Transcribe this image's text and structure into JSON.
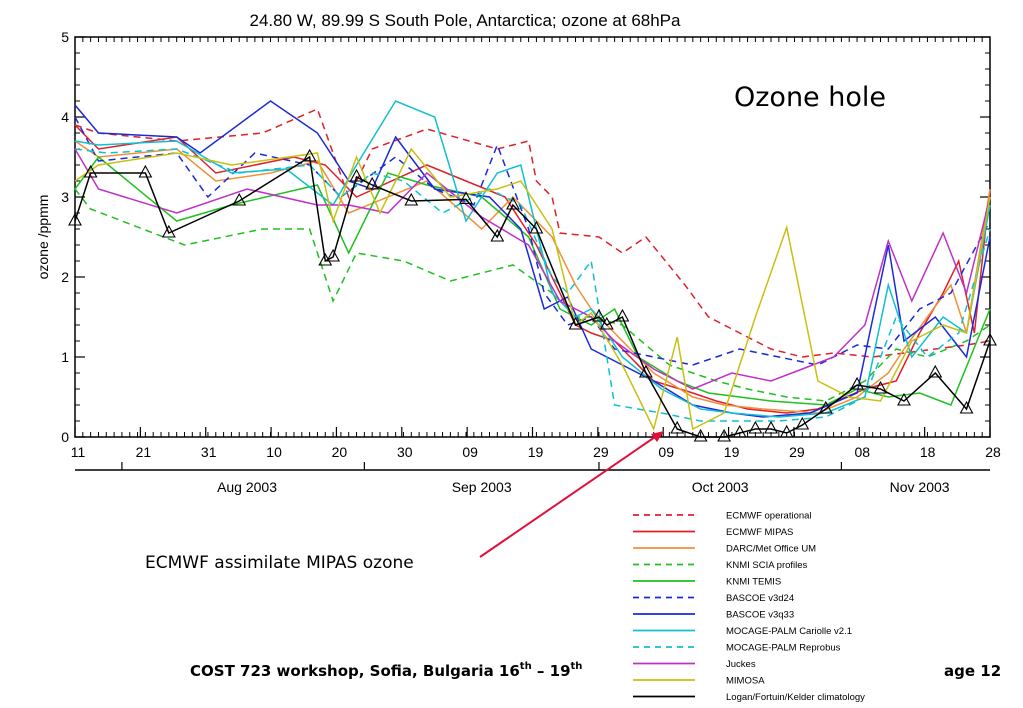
{
  "chart_data": {
    "type": "line",
    "title": "24.80 W, 89.99 S South Pole, Antarctica; ozone at 68hPa",
    "ylabel": "ozone /ppmm",
    "xlabel": "",
    "ylim": [
      0,
      5
    ],
    "xlim": [
      0,
      117
    ],
    "y_ticks": [
      "0",
      "1",
      "2",
      "3",
      "4",
      "5"
    ],
    "x_tick_labels": [
      "11",
      "21",
      "31",
      "10",
      "20",
      "30",
      "09",
      "19",
      "29",
      "09",
      "19",
      "29",
      "08",
      "18",
      "28"
    ],
    "x_months": [
      "Aug 2003",
      "Sep 2003",
      "Oct 2003",
      "Nov 2003"
    ],
    "grid": false,
    "legend_position": "bottom-right below plot",
    "series": [
      {
        "name": "ECMWF operational",
        "color": "#e0202a",
        "dash": true,
        "markers": false,
        "x": [
          0,
          3,
          13,
          24,
          31,
          35,
          38,
          45,
          54,
          58,
          59,
          61,
          62,
          67,
          70,
          73,
          78,
          81,
          85,
          89,
          93,
          97,
          102,
          106,
          110,
          114,
          117
        ],
        "y": [
          3.9,
          3.8,
          3.7,
          3.8,
          4.1,
          3.0,
          3.6,
          3.85,
          3.6,
          3.7,
          3.2,
          3.0,
          2.55,
          2.5,
          2.3,
          2.5,
          1.9,
          1.5,
          1.3,
          1.1,
          1.0,
          1.05,
          1.0,
          1.05,
          1.1,
          1.15,
          1.2
        ]
      },
      {
        "name": "ECMWF MIPAS",
        "color": "#e0202a",
        "dash": false,
        "markers": false,
        "x": [
          0,
          3,
          13,
          18,
          28,
          32,
          36,
          45,
          55,
          59,
          64,
          66,
          69,
          74,
          79,
          82,
          86,
          91,
          95,
          101,
          105,
          108,
          111,
          113,
          115,
          117
        ],
        "y": [
          3.9,
          3.6,
          3.75,
          3.3,
          3.5,
          3.4,
          3.0,
          3.4,
          3.0,
          2.4,
          1.4,
          1.3,
          1.2,
          0.7,
          0.55,
          0.45,
          0.35,
          0.3,
          0.35,
          0.6,
          0.7,
          1.3,
          1.8,
          2.2,
          1.3,
          3.1
        ]
      },
      {
        "name": "DARC/Met Office UM",
        "color": "#f0903a",
        "dash": false,
        "markers": false,
        "x": [
          0,
          3,
          13,
          18,
          25,
          31,
          35,
          45,
          52,
          56,
          61,
          64,
          66,
          69,
          74,
          79,
          83,
          88,
          95,
          100,
          104,
          106,
          109,
          112,
          114,
          117
        ],
        "y": [
          3.7,
          3.5,
          3.6,
          3.2,
          3.3,
          3.45,
          2.8,
          3.2,
          2.6,
          3.0,
          2.5,
          1.9,
          1.6,
          1.3,
          0.8,
          0.5,
          0.4,
          0.35,
          0.3,
          0.5,
          0.8,
          1.1,
          1.5,
          1.9,
          1.3,
          3.1
        ]
      },
      {
        "name": "KNMI SCIA profiles",
        "color": "#20c020",
        "dash": true,
        "markers": false,
        "x": [
          0,
          2,
          14,
          24,
          30,
          33,
          36,
          42,
          48,
          56,
          61,
          64,
          66,
          70,
          76,
          82,
          86,
          91,
          96,
          101,
          105,
          109,
          114,
          117
        ],
        "y": [
          3.1,
          2.85,
          2.4,
          2.6,
          2.6,
          1.7,
          2.3,
          2.2,
          1.95,
          2.15,
          1.8,
          1.5,
          1.5,
          1.4,
          0.9,
          0.7,
          0.6,
          0.5,
          0.45,
          0.7,
          1.1,
          1.0,
          1.2,
          1.4
        ]
      },
      {
        "name": "KNMI TEMIS",
        "color": "#20c020",
        "dash": false,
        "markers": false,
        "x": [
          0,
          3,
          13,
          20,
          31,
          35,
          40,
          45,
          52,
          58,
          62,
          66,
          69,
          72,
          77,
          81,
          85,
          89,
          96,
          100,
          104,
          108,
          112,
          117
        ],
        "y": [
          3.1,
          3.5,
          2.7,
          2.9,
          3.15,
          2.3,
          3.3,
          3.15,
          3.0,
          2.5,
          1.6,
          1.4,
          1.6,
          1.0,
          0.7,
          0.55,
          0.5,
          0.45,
          0.4,
          0.6,
          0.5,
          0.55,
          0.4,
          1.6
        ]
      },
      {
        "name": "BASCOE v3d24",
        "color": "#1a2ad8",
        "dash": true,
        "markers": false,
        "x": [
          0,
          3,
          13,
          17,
          23,
          30,
          34,
          41,
          46,
          51,
          54,
          58,
          60,
          63,
          66,
          69,
          74,
          79,
          85,
          90,
          95,
          100,
          104,
          108,
          112,
          117
        ],
        "y": [
          4.0,
          3.45,
          3.55,
          3.0,
          3.55,
          3.4,
          3.0,
          3.5,
          3.1,
          2.9,
          3.65,
          2.6,
          1.8,
          1.4,
          1.5,
          1.1,
          1.0,
          0.9,
          1.1,
          1.0,
          0.9,
          1.15,
          1.1,
          1.6,
          1.8,
          2.7
        ]
      },
      {
        "name": "BASCOE v3q33",
        "color": "#1a2ad8",
        "dash": false,
        "markers": false,
        "x": [
          0,
          3,
          13,
          16,
          25,
          31,
          35,
          38,
          41,
          46,
          53,
          57,
          60,
          63,
          66,
          69,
          74,
          79,
          84,
          88,
          94,
          100,
          104,
          106,
          110,
          114,
          117
        ],
        "y": [
          4.15,
          3.8,
          3.75,
          3.55,
          4.2,
          3.8,
          3.2,
          3.1,
          3.75,
          3.1,
          3.0,
          2.6,
          1.6,
          1.75,
          1.1,
          0.95,
          0.7,
          0.4,
          0.3,
          0.25,
          0.3,
          0.55,
          2.4,
          1.2,
          1.5,
          1.0,
          2.5
        ]
      },
      {
        "name": "MOCAGE-PALM Cariolle v2.1",
        "color": "#10c0d0",
        "dash": false,
        "markers": false,
        "x": [
          0,
          3,
          13,
          20,
          27,
          33,
          36,
          41,
          46,
          50,
          54,
          57,
          61,
          64,
          66,
          70,
          75,
          80,
          84,
          90,
          96,
          101,
          104,
          107,
          111,
          114,
          117
        ],
        "y": [
          3.7,
          3.65,
          3.7,
          3.3,
          3.35,
          2.9,
          3.4,
          4.2,
          4.0,
          2.7,
          3.3,
          3.4,
          1.8,
          1.5,
          1.6,
          1.0,
          0.6,
          0.35,
          0.3,
          0.25,
          0.3,
          0.5,
          1.9,
          1.0,
          1.5,
          1.3,
          2.9
        ]
      },
      {
        "name": "MOCAGE-PALM Reprobus",
        "color": "#10c0d0",
        "dash": true,
        "markers": false,
        "x": [
          0,
          4,
          13,
          21,
          30,
          34,
          38,
          42,
          47,
          53,
          57,
          61,
          63,
          66,
          69,
          75,
          80,
          84,
          90,
          96,
          101,
          105,
          109,
          113,
          117
        ],
        "y": [
          3.6,
          3.55,
          3.6,
          3.3,
          3.4,
          3.0,
          3.3,
          3.2,
          2.8,
          3.1,
          2.9,
          2.0,
          1.8,
          2.2,
          0.4,
          0.3,
          0.2,
          0.2,
          0.2,
          0.25,
          0.5,
          1.5,
          1.0,
          1.3,
          2.6
        ]
      },
      {
        "name": "Juckes",
        "color": "#c030c8",
        "dash": false,
        "markers": false,
        "x": [
          0,
          3,
          13,
          22,
          31,
          35,
          40,
          45,
          52,
          58,
          62,
          66,
          69,
          74,
          79,
          84,
          89,
          93,
          97,
          101,
          104,
          107,
          111,
          114,
          117
        ],
        "y": [
          3.6,
          3.1,
          2.8,
          3.1,
          2.9,
          2.9,
          2.8,
          3.3,
          2.75,
          2.4,
          1.7,
          1.5,
          1.2,
          0.85,
          0.6,
          0.8,
          0.7,
          0.85,
          1.0,
          1.4,
          2.45,
          1.7,
          2.55,
          1.8,
          3.0
        ]
      },
      {
        "name": "MIMOSA",
        "color": "#c8c010",
        "dash": false,
        "markers": false,
        "x": [
          0,
          3,
          13,
          20,
          31,
          33,
          36,
          39,
          43,
          48,
          54,
          57,
          61,
          64,
          66,
          70,
          74,
          77,
          79,
          83,
          87,
          91,
          95,
          99,
          103,
          107,
          111,
          114,
          117
        ],
        "y": [
          3.2,
          3.4,
          3.55,
          3.4,
          3.55,
          2.7,
          3.5,
          2.8,
          3.6,
          3.0,
          3.1,
          3.2,
          2.6,
          1.4,
          1.55,
          0.9,
          0.1,
          1.25,
          0.1,
          0.3,
          1.5,
          2.62,
          0.7,
          0.5,
          0.45,
          1.2,
          1.4,
          1.3,
          3.0
        ]
      },
      {
        "name": "Logan/Fortuin/Kelder climatology",
        "color": "#000000",
        "dash": false,
        "markers": true,
        "x": [
          0,
          2,
          9,
          12,
          21,
          30,
          32,
          33,
          36,
          38,
          43,
          50,
          54,
          56,
          59,
          64,
          67,
          68,
          70,
          73,
          77,
          80,
          83,
          85,
          87,
          89,
          91,
          93,
          96,
          100,
          103,
          106,
          110,
          114,
          117
        ],
        "y": [
          2.7,
          3.3,
          3.3,
          2.55,
          2.95,
          3.5,
          2.2,
          2.25,
          3.25,
          3.15,
          2.95,
          2.97,
          2.5,
          2.9,
          2.6,
          1.4,
          1.5,
          1.4,
          1.5,
          0.8,
          0.1,
          0.0,
          0.0,
          0.05,
          0.1,
          0.1,
          0.05,
          0.15,
          0.35,
          0.65,
          0.6,
          0.45,
          0.8,
          0.35,
          1.2
        ]
      }
    ]
  },
  "annotations": {
    "ozone_hole": "Ozone hole",
    "mipas": "ECMWF assimilate MIPAS ozone"
  },
  "footer": {
    "text_main": "COST 723 workshop, Sofia, Bulgaria 16",
    "sup1": "th",
    "dash": " – 19",
    "sup2": "th",
    "page": "age 12"
  }
}
